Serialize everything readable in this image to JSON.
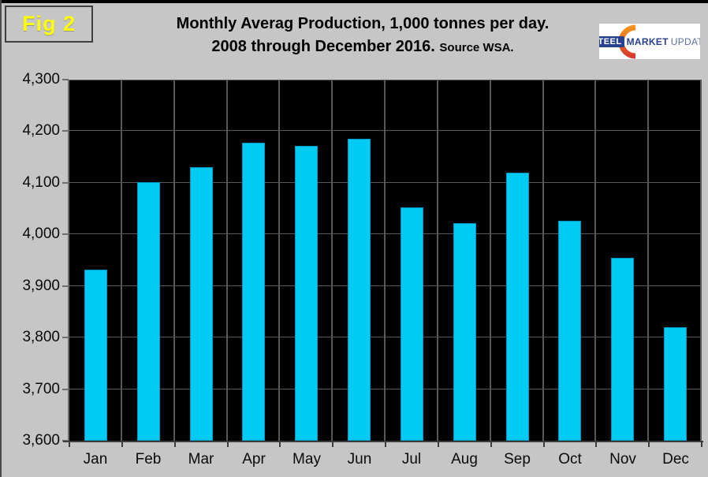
{
  "figure_label": "Fig 2",
  "title": {
    "line1": "Monthly Averag Production, 1,000 tonnes per day.",
    "line2": "2008 through December 2016.",
    "source": "Source WSA."
  },
  "logo": {
    "word1": "STEEL",
    "word2": "MARKET",
    "word3": "UPDATE"
  },
  "chart_data": {
    "type": "bar",
    "title": "Monthly Averag Production, 1,000 tonnes per day. 2008 through December 2016. Source WSA.",
    "categories": [
      "Jan",
      "Feb",
      "Mar",
      "Apr",
      "May",
      "Jun",
      "Jul",
      "Aug",
      "Sep",
      "Oct",
      "Nov",
      "Dec"
    ],
    "values": [
      3932,
      4102,
      4131,
      4177,
      4172,
      4185,
      4052,
      4022,
      4120,
      4027,
      3955,
      3820
    ],
    "xlabel": "",
    "ylabel": "",
    "ylim": [
      3600,
      4300
    ],
    "yticks": [
      3600,
      3700,
      3800,
      3900,
      4000,
      4100,
      4200,
      4300
    ],
    "ytick_labels": [
      "3,600",
      "3,700",
      "3,800",
      "3,900",
      "4,000",
      "4,100",
      "4,200",
      "4,300"
    ],
    "grid": true,
    "legend": false,
    "colors": {
      "page_bg": "#C6C6C6",
      "plot_bg": "#000000",
      "gridline": "#595959",
      "bar_fill": "#00CBF5",
      "bar_edge": "#0097C4",
      "axis": "#3d3d3d",
      "tick": "#6e6e6e",
      "fig_label_text": "#FFFF00",
      "fig_box_border": "#3F3F3F",
      "logo_navy": "#27418D",
      "logo_update": "#5B6FA3",
      "logo_orange_top": "#F7941E",
      "logo_orange_bottom": "#D93A2B",
      "frame_top": "#000000",
      "frame_left": "#4A4A4A"
    }
  }
}
